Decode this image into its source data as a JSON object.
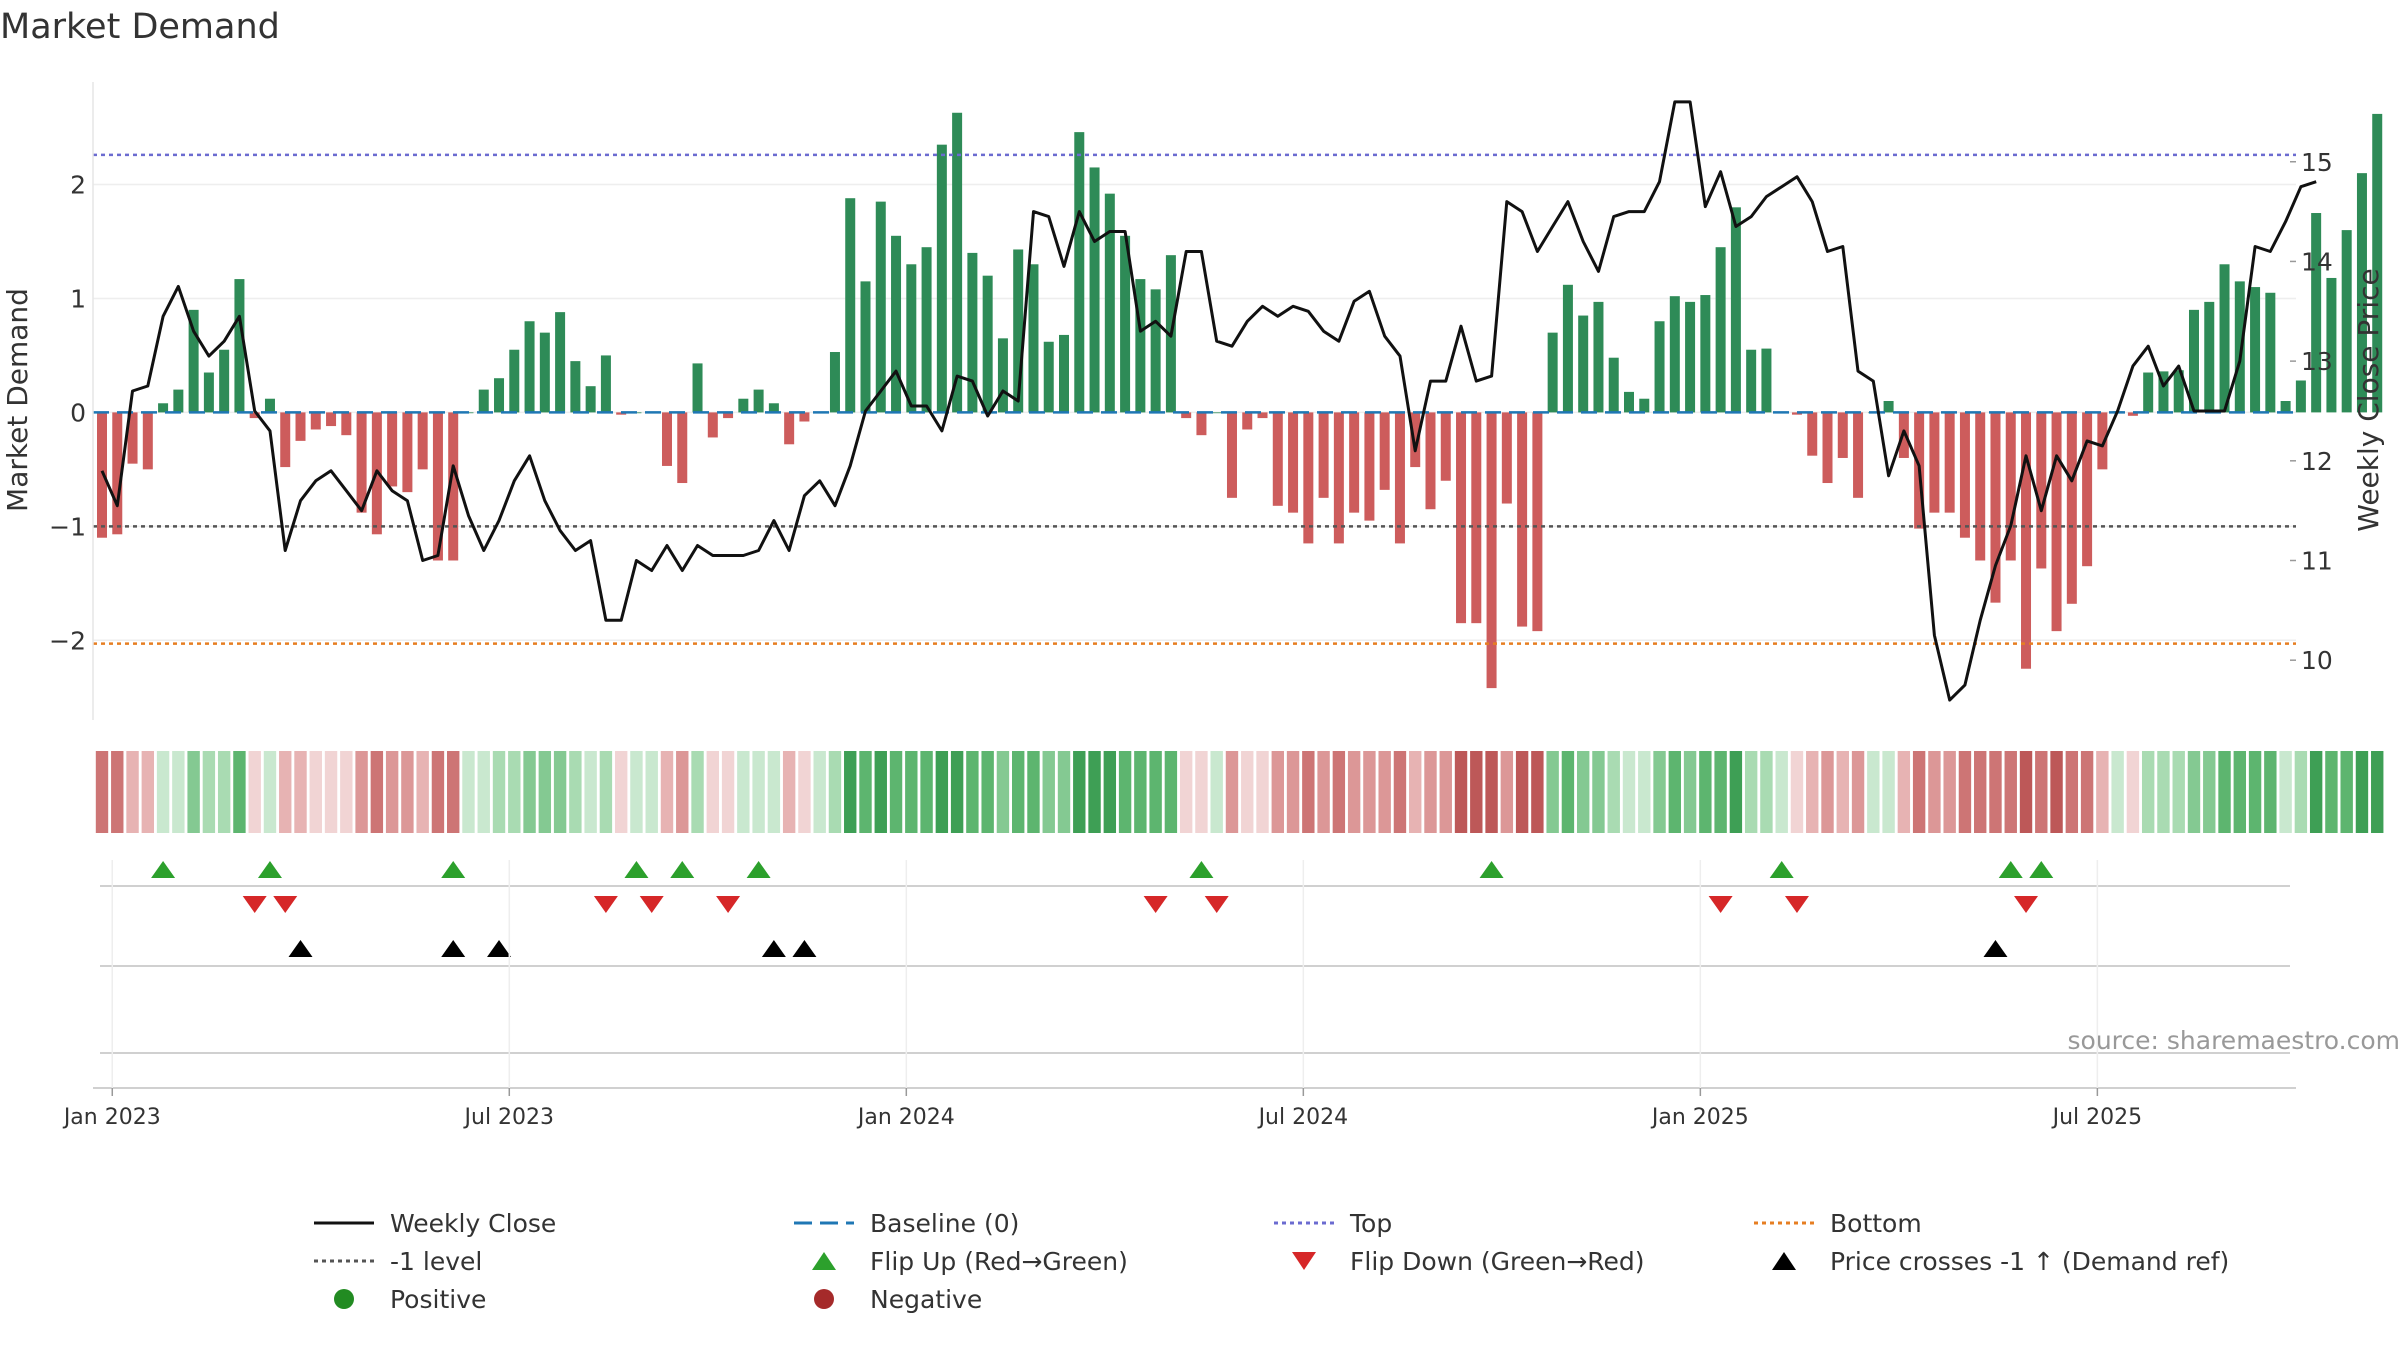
{
  "chart_data": {
    "type": "bar",
    "title": "Market Demand",
    "ylabel": "Market Demand",
    "y2label": "Weekly Close Price",
    "ylim": [
      -2.7,
      2.9
    ],
    "y2lim": [
      9.4,
      15.8
    ],
    "yticks": [
      "2",
      "1",
      "0",
      "−1",
      "−2"
    ],
    "ytick_values": [
      2,
      1,
      0,
      -1,
      -2
    ],
    "y2ticks": [
      "15",
      "14",
      "13",
      "12",
      "11",
      "10"
    ],
    "y2tick_values": [
      15,
      14,
      13,
      12,
      11,
      10
    ],
    "x_start": "2022-12-26",
    "weeks": 143,
    "x_ticks": [
      "Jan 2023",
      "Jul 2023",
      "Jan 2024",
      "Jul 2024",
      "Jan 2025",
      "Jul 2025"
    ],
    "x_tick_weeks": [
      1,
      27,
      53,
      79,
      105,
      131
    ],
    "levels": {
      "top": 2.26,
      "bottom": -2.03,
      "minus_one": -1.0,
      "baseline": 0.0
    },
    "colors": {
      "positive": "#2e8b57",
      "negative": "#cd5c5c",
      "price": "#111111",
      "top": "#6b6bd0",
      "bottom": "#e67e22",
      "minus_one": "#555555",
      "baseline": "#1f77b4",
      "flip_up": "#2ca02c",
      "flip_down": "#d62728",
      "cross": "#000000"
    },
    "demand": [
      -1.1,
      -1.07,
      -0.45,
      -0.5,
      0.08,
      0.2,
      0.9,
      0.35,
      0.55,
      1.17,
      -0.05,
      0.12,
      -0.48,
      -0.25,
      -0.15,
      -0.12,
      -0.2,
      -0.88,
      -1.07,
      -0.65,
      -0.7,
      -0.5,
      -1.3,
      -1.3,
      0.0,
      0.2,
      0.3,
      0.55,
      0.8,
      0.7,
      0.88,
      0.45,
      0.23,
      0.5,
      -0.02,
      0.0,
      0.0,
      -0.47,
      -0.62,
      0.43,
      -0.22,
      -0.05,
      0.12,
      0.2,
      0.08,
      -0.28,
      -0.08,
      0.0,
      0.53,
      1.88,
      1.15,
      1.85,
      1.55,
      1.3,
      1.45,
      2.35,
      2.63,
      1.4,
      1.2,
      0.65,
      1.43,
      1.3,
      0.62,
      0.68,
      2.46,
      2.15,
      1.92,
      1.55,
      1.17,
      1.08,
      1.38,
      -0.05,
      -0.2,
      0.0,
      -0.75,
      -0.15,
      -0.05,
      -0.82,
      -0.88,
      -1.15,
      -0.75,
      -1.15,
      -0.88,
      -0.95,
      -0.68,
      -1.15,
      -0.48,
      -0.85,
      -0.6,
      -1.85,
      -1.85,
      -2.42,
      -0.8,
      -1.88,
      -1.92,
      0.7,
      1.12,
      0.85,
      0.97,
      0.48,
      0.18,
      0.12,
      0.8,
      1.02,
      0.97,
      1.03,
      1.45,
      1.8,
      0.55,
      0.56,
      0.0,
      -0.02,
      -0.38,
      -0.62,
      -0.4,
      -0.75,
      0.0,
      0.1,
      -0.4,
      -1.02,
      -0.88,
      -0.88,
      -1.1,
      -1.3,
      -1.67,
      -1.3,
      -2.25,
      -1.37,
      -1.92,
      -1.68,
      -1.35,
      -0.5,
      0.01,
      -0.03,
      0.35,
      0.36,
      0.37,
      0.9,
      0.97,
      1.3,
      1.15,
      1.1,
      1.05,
      0.1,
      0.28,
      1.75,
      1.18,
      1.6,
      2.1,
      2.62
    ],
    "price": [
      11.9,
      11.55,
      12.7,
      12.75,
      13.45,
      13.75,
      13.3,
      13.05,
      13.2,
      13.45,
      12.5,
      12.3,
      11.1,
      11.6,
      11.8,
      11.9,
      11.7,
      11.5,
      11.9,
      11.7,
      11.6,
      11.0,
      11.05,
      11.95,
      11.45,
      11.1,
      11.4,
      11.8,
      12.05,
      11.6,
      11.3,
      11.1,
      11.2,
      10.4,
      10.4,
      11.0,
      10.9,
      11.15,
      10.9,
      11.15,
      11.05,
      11.05,
      11.05,
      11.1,
      11.4,
      11.1,
      11.65,
      11.8,
      11.55,
      11.95,
      12.5,
      12.7,
      12.9,
      12.55,
      12.55,
      12.3,
      12.85,
      12.8,
      12.45,
      12.7,
      12.6,
      14.5,
      14.45,
      13.95,
      14.5,
      14.2,
      14.3,
      14.3,
      13.3,
      13.4,
      13.25,
      14.1,
      14.1,
      13.2,
      13.15,
      13.4,
      13.55,
      13.45,
      13.55,
      13.5,
      13.3,
      13.2,
      13.6,
      13.7,
      13.25,
      13.05,
      12.1,
      12.8,
      12.8,
      13.35,
      12.8,
      12.85,
      14.6,
      14.5,
      14.1,
      14.35,
      14.6,
      14.2,
      13.9,
      14.45,
      14.5,
      14.5,
      14.8,
      15.6,
      15.6,
      14.55,
      14.9,
      14.35,
      14.45,
      14.65,
      14.75,
      14.85,
      14.6,
      14.1,
      14.15,
      12.9,
      12.8,
      11.85,
      12.3,
      11.95,
      10.25,
      9.6,
      9.75,
      10.4,
      10.95,
      11.35,
      12.05,
      11.5,
      12.05,
      11.8,
      12.2,
      12.15,
      12.5,
      12.95,
      13.15,
      12.75,
      12.95,
      12.5,
      12.5,
      12.5,
      13.0,
      14.15,
      14.1,
      14.4,
      14.75,
      14.8
    ],
    "strip": {
      "positive_colors": [
        "#c9e8cf",
        "#a9dbb2",
        "#84c992",
        "#5db56f",
        "#3e9f55"
      ],
      "negative_colors": [
        "#f1d4d4",
        "#e7b3b3",
        "#dc9797",
        "#cd7575",
        "#bd5858"
      ]
    },
    "flip_up_weeks": [
      4,
      11,
      23,
      35,
      38,
      43,
      72,
      91,
      110,
      125,
      127
    ],
    "flip_down_weeks": [
      10,
      12,
      33,
      36,
      41,
      69,
      73,
      106,
      111,
      126
    ],
    "price_cross_weeks": [
      13,
      23,
      26,
      44,
      46,
      124
    ],
    "source": "source: sharemaestro.com"
  },
  "legend": [
    {
      "label": "Weekly Close",
      "symbol": "solid-line"
    },
    {
      "label": "Baseline (0)",
      "symbol": "dashed-line"
    },
    {
      "label": "Top",
      "symbol": "dotted-line"
    },
    {
      "label": "Bottom",
      "symbol": "dotted-line"
    },
    {
      "label": "-1 level",
      "symbol": "dotted-line"
    },
    {
      "label": "Flip Up (Red→Green)",
      "symbol": "triangle-up"
    },
    {
      "label": "Flip Down (Green→Red)",
      "symbol": "triangle-down"
    },
    {
      "label": "Price crosses -1 ↑ (Demand ref)",
      "symbol": "triangle-up"
    },
    {
      "label": "Positive",
      "symbol": "circle"
    },
    {
      "label": "Negative",
      "symbol": "circle"
    }
  ]
}
